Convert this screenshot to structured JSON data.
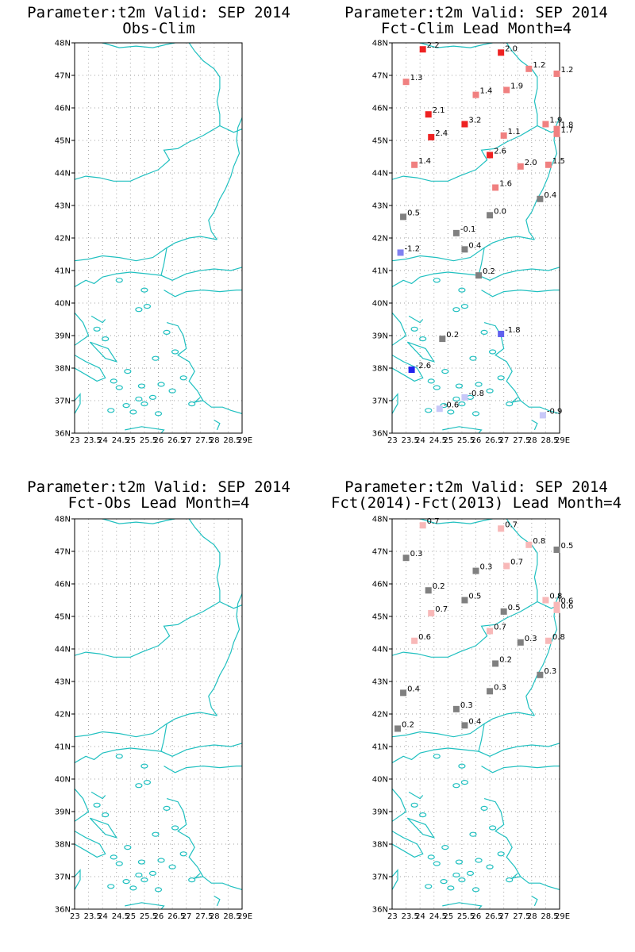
{
  "panels": [
    {
      "title1": "Parameter:t2m Valid: SEP 2014",
      "title2": "Obs-Clim",
      "stations": []
    },
    {
      "title1": "Parameter:t2m Valid: SEP 2014",
      "title2": "Fct-Clim Lead Month=4",
      "stations": [
        {
          "lon": 24.1,
          "lat": 47.8,
          "value": "2.2",
          "color": "#ee2222"
        },
        {
          "lon": 26.9,
          "lat": 47.7,
          "value": "2.0",
          "color": "#ee2222"
        },
        {
          "lon": 27.9,
          "lat": 47.2,
          "value": "1.2",
          "color": "#f08080"
        },
        {
          "lon": 28.9,
          "lat": 47.05,
          "value": "1.2",
          "color": "#f08080"
        },
        {
          "lon": 23.5,
          "lat": 46.8,
          "value": "1.3",
          "color": "#f08080"
        },
        {
          "lon": 26.0,
          "lat": 46.4,
          "value": "1.4",
          "color": "#f08080"
        },
        {
          "lon": 27.1,
          "lat": 46.55,
          "value": "1.9",
          "color": "#f08080"
        },
        {
          "lon": 24.3,
          "lat": 45.8,
          "value": "2.1",
          "color": "#ee2222"
        },
        {
          "lon": 25.6,
          "lat": 45.5,
          "value": "3.2",
          "color": "#ee2222"
        },
        {
          "lon": 28.5,
          "lat": 45.5,
          "value": "1.9",
          "color": "#f08080"
        },
        {
          "lon": 28.9,
          "lat": 45.35,
          "value": "1.8",
          "color": "#f08080"
        },
        {
          "lon": 28.9,
          "lat": 45.2,
          "value": "1.7",
          "color": "#f08080"
        },
        {
          "lon": 24.4,
          "lat": 45.1,
          "value": "2.4",
          "color": "#ee2222"
        },
        {
          "lon": 27.0,
          "lat": 45.15,
          "value": "1.1",
          "color": "#f08080"
        },
        {
          "lon": 26.5,
          "lat": 44.55,
          "value": "2.6",
          "color": "#ee2222"
        },
        {
          "lon": 23.8,
          "lat": 44.25,
          "value": "1.4",
          "color": "#f08080"
        },
        {
          "lon": 27.6,
          "lat": 44.2,
          "value": "2.0",
          "color": "#f08080"
        },
        {
          "lon": 28.6,
          "lat": 44.25,
          "value": "1.5",
          "color": "#f08080"
        },
        {
          "lon": 26.7,
          "lat": 43.55,
          "value": "1.6",
          "color": "#f08080"
        },
        {
          "lon": 28.3,
          "lat": 43.2,
          "value": "0.4",
          "color": "#808080"
        },
        {
          "lon": 23.4,
          "lat": 42.65,
          "value": "0.5",
          "color": "#808080"
        },
        {
          "lon": 26.5,
          "lat": 42.7,
          "value": "0.0",
          "color": "#808080"
        },
        {
          "lon": 25.3,
          "lat": 42.15,
          "value": "-0.1",
          "color": "#808080"
        },
        {
          "lon": 25.6,
          "lat": 41.65,
          "value": "0.4",
          "color": "#808080"
        },
        {
          "lon": 23.3,
          "lat": 41.55,
          "value": "-1.2",
          "color": "#8080f0"
        },
        {
          "lon": 26.1,
          "lat": 40.85,
          "value": "0.2",
          "color": "#808080"
        },
        {
          "lon": 24.8,
          "lat": 38.9,
          "value": "0.2",
          "color": "#808080"
        },
        {
          "lon": 26.9,
          "lat": 39.05,
          "value": "-1.8",
          "color": "#6060ee"
        },
        {
          "lon": 23.7,
          "lat": 37.95,
          "value": "-2.6",
          "color": "#2222ee"
        },
        {
          "lon": 25.6,
          "lat": 37.1,
          "value": "-0.8",
          "color": "#c8c8f8"
        },
        {
          "lon": 24.7,
          "lat": 36.75,
          "value": "-0.6",
          "color": "#c8c8f8"
        },
        {
          "lon": 28.4,
          "lat": 36.55,
          "value": "-0.9",
          "color": "#c8c8f8"
        }
      ]
    },
    {
      "title1": "Parameter:t2m Valid: SEP 2014",
      "title2": "Fct-Obs Lead Month=4",
      "stations": []
    },
    {
      "title1": "Parameter:t2m Valid: SEP 2014",
      "title2": "Fct(2014)-Fct(2013) Lead Month=4",
      "stations": [
        {
          "lon": 24.1,
          "lat": 47.8,
          "value": "0.7",
          "color": "#f8b8b8"
        },
        {
          "lon": 26.9,
          "lat": 47.7,
          "value": "0.7",
          "color": "#f8b8b8"
        },
        {
          "lon": 27.9,
          "lat": 47.2,
          "value": "0.8",
          "color": "#f8b8b8"
        },
        {
          "lon": 28.9,
          "lat": 47.05,
          "value": "0.5",
          "color": "#808080"
        },
        {
          "lon": 23.5,
          "lat": 46.8,
          "value": "0.3",
          "color": "#808080"
        },
        {
          "lon": 26.0,
          "lat": 46.4,
          "value": "0.3",
          "color": "#808080"
        },
        {
          "lon": 27.1,
          "lat": 46.55,
          "value": "0.7",
          "color": "#f8b8b8"
        },
        {
          "lon": 24.3,
          "lat": 45.8,
          "value": "0.2",
          "color": "#808080"
        },
        {
          "lon": 25.6,
          "lat": 45.5,
          "value": "0.5",
          "color": "#808080"
        },
        {
          "lon": 28.5,
          "lat": 45.5,
          "value": "0.8",
          "color": "#f8b8b8"
        },
        {
          "lon": 28.9,
          "lat": 45.35,
          "value": "0.6",
          "color": "#f8b8b8"
        },
        {
          "lon": 28.9,
          "lat": 45.2,
          "value": "0.6",
          "color": "#f8b8b8"
        },
        {
          "lon": 24.4,
          "lat": 45.1,
          "value": "0.7",
          "color": "#f8b8b8"
        },
        {
          "lon": 27.0,
          "lat": 45.15,
          "value": "0.5",
          "color": "#808080"
        },
        {
          "lon": 26.5,
          "lat": 44.55,
          "value": "0.7",
          "color": "#f8b8b8"
        },
        {
          "lon": 23.8,
          "lat": 44.25,
          "value": "0.6",
          "color": "#f8b8b8"
        },
        {
          "lon": 27.6,
          "lat": 44.2,
          "value": "0.3",
          "color": "#808080"
        },
        {
          "lon": 28.6,
          "lat": 44.25,
          "value": "0.8",
          "color": "#f8b8b8"
        },
        {
          "lon": 26.7,
          "lat": 43.55,
          "value": "0.2",
          "color": "#808080"
        },
        {
          "lon": 28.3,
          "lat": 43.2,
          "value": "0.3",
          "color": "#808080"
        },
        {
          "lon": 23.4,
          "lat": 42.65,
          "value": "0.4",
          "color": "#808080"
        },
        {
          "lon": 26.5,
          "lat": 42.7,
          "value": "0.3",
          "color": "#808080"
        },
        {
          "lon": 25.3,
          "lat": 42.15,
          "value": "0.3",
          "color": "#808080"
        },
        {
          "lon": 25.6,
          "lat": 41.65,
          "value": "0.4",
          "color": "#808080"
        },
        {
          "lon": 23.2,
          "lat": 41.55,
          "value": "0.2",
          "color": "#808080"
        }
      ]
    }
  ],
  "axes": {
    "lat_labels": [
      "36N",
      "37N",
      "38N",
      "39N",
      "40N",
      "41N",
      "42N",
      "43N",
      "44N",
      "45N",
      "46N",
      "47N",
      "48N"
    ],
    "lon_labels": [
      "23",
      "23.5",
      "24",
      "24.5",
      "25",
      "25.5",
      "26",
      "26.5",
      "27",
      "27.5",
      "28",
      "28.5",
      "29E"
    ],
    "lat_range": [
      36,
      48
    ],
    "lon_range": [
      23,
      29
    ],
    "grid": "dotted"
  },
  "colors": {
    "coastline": "#20c0c0",
    "grid": "#a0a0a0",
    "frame": "#000000"
  }
}
